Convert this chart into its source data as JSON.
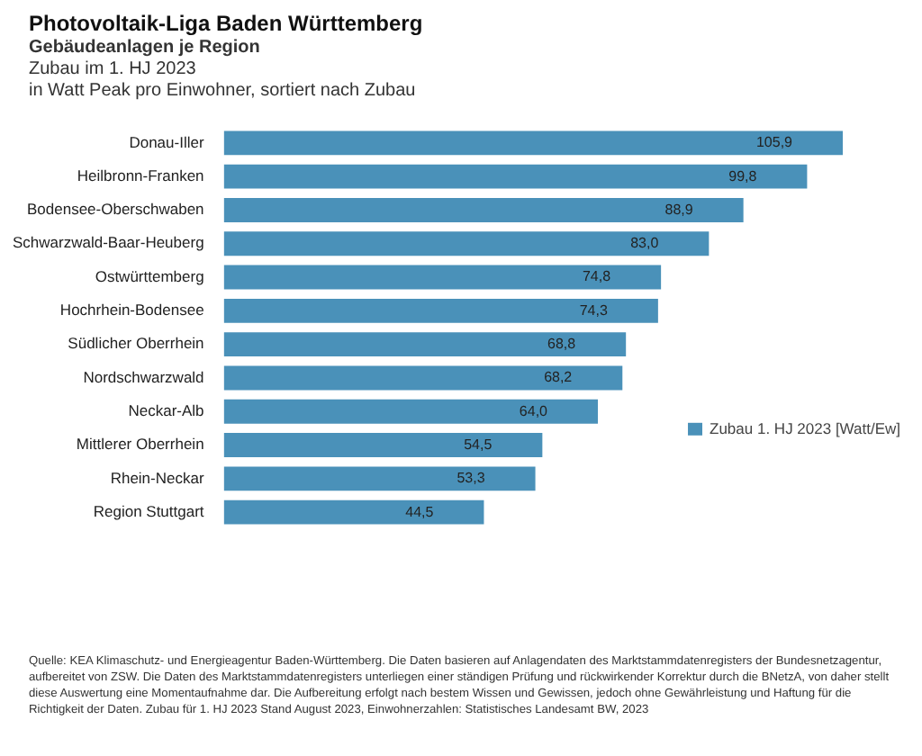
{
  "chart_data": {
    "type": "bar",
    "orientation": "horizontal",
    "title": "Photovoltaik-Liga Baden Württemberg",
    "subtitle": "Gebäudeanlagen je Region",
    "annotations": [
      "Zubau im 1. HJ 2023",
      "in Watt Peak pro Einwohner, sortiert nach Zubau",
      "Quelle: KEA Klimaschutz- und Energieagentur Baden-Württemberg. Die Daten basieren auf Anlagendaten des Marktstammdatenregisters der Bundesnetzagentur, aufbereitet von ZSW. Die Daten des Marktstammdatenregisters unterliegen einer ständigen Prüfung und rückwirkender Korrektur durch die BNetzA, von daher stellt diese Auswertung eine Momentaufnahme dar. Die Aufbereitung erfolgt nach bestem Wissen und Gewissen, jedoch ohne Gewährleistung und Haftung für die Richtigkeit der Daten. Zubau für 1. HJ 2023 Stand August 2023, Einwohnerzahlen: Statistisches Landesamt BW, 2023"
    ],
    "categories": [
      "Donau-Iller",
      "Heilbronn-Franken",
      "Bodensee-Oberschwaben",
      "Schwarzwald-Baar-Heuberg",
      "Ostwürttemberg",
      "Hochrhein-Bodensee",
      "Südlicher Oberrhein",
      "Nordschwarzwald",
      "Neckar-Alb",
      "Mittlerer Oberrhein",
      "Rhein-Neckar",
      "Region Stuttgart"
    ],
    "series": [
      {
        "name": "Zubau 1. HJ 2023 [Watt/Ew]",
        "color": "#4a91b9",
        "values": [
          105.9,
          99.8,
          88.9,
          83.0,
          74.8,
          74.3,
          68.8,
          68.2,
          64.0,
          54.5,
          53.3,
          44.5
        ],
        "value_labels": [
          "105,9",
          "99,8",
          "88,9",
          "83,0",
          "74,8",
          "74,3",
          "68,8",
          "68,2",
          "64,0",
          "54,5",
          "53,3",
          "44,5"
        ]
      }
    ],
    "legend": "bottom right"
  }
}
